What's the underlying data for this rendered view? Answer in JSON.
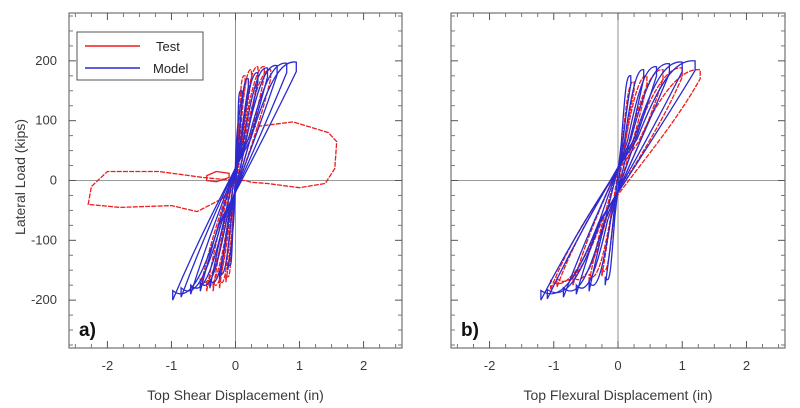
{
  "figure": {
    "ylabel": "Lateral Load (kips)"
  },
  "legend": {
    "items": [
      {
        "name": "Test",
        "color": "#ee1c1c"
      },
      {
        "name": "Model",
        "color": "#2a2ad0"
      }
    ]
  },
  "chart_data": [
    {
      "type": "line",
      "panel_label": "a)",
      "xlabel": "Top Shear Displacement (in)",
      "ylabel": "Lateral Load (kips)",
      "xlim": [
        -2.6,
        2.6
      ],
      "ylim": [
        -280,
        280
      ],
      "xticks": [
        -2,
        -1,
        0,
        1,
        2
      ],
      "yticks": [
        -200,
        -100,
        0,
        100,
        200
      ],
      "x_tick_labels": [
        "-2",
        "-1",
        "0",
        "1",
        "2"
      ],
      "y_tick_labels": [
        "-200",
        "-100",
        "0",
        "100",
        "200"
      ],
      "reference_lines": {
        "x": 0,
        "y": 0
      },
      "legend_position": "top-left",
      "series": [
        {
          "name": "Test",
          "color": "#ee1c1c",
          "loops": [
            {
              "pos": [
                0.15,
                175
              ],
              "neg": [
                -0.15,
                -170
              ]
            },
            {
              "pos": [
                0.25,
                185
              ],
              "neg": [
                -0.25,
                -180
              ]
            },
            {
              "pos": [
                0.35,
                190
              ],
              "neg": [
                -0.35,
                -185
              ]
            },
            {
              "pos": [
                0.45,
                190
              ],
              "neg": [
                -0.45,
                -185
              ]
            },
            {
              "pos": [
                0.55,
                185
              ],
              "neg": [
                -0.55,
                -180
              ]
            }
          ],
          "excursion": [
            [
              0.0,
              30
            ],
            [
              0.3,
              90
            ],
            [
              0.9,
              98
            ],
            [
              1.45,
              80
            ],
            [
              1.58,
              65
            ],
            [
              1.55,
              20
            ],
            [
              1.4,
              -5
            ],
            [
              1.0,
              -12
            ],
            [
              0.5,
              -5
            ],
            [
              0.25,
              -3
            ],
            [
              0.15,
              0
            ],
            [
              0.0,
              0
            ],
            [
              -0.5,
              5
            ],
            [
              -1.2,
              15
            ],
            [
              -2.0,
              15
            ],
            [
              -2.25,
              -10
            ],
            [
              -2.3,
              -40
            ],
            [
              -1.8,
              -45
            ],
            [
              -1.0,
              -42
            ],
            [
              -0.6,
              -52
            ],
            [
              -0.2,
              -30
            ],
            [
              0.0,
              0
            ]
          ],
          "small_loop": [
            [
              -0.3,
              15
            ],
            [
              -0.45,
              8
            ],
            [
              -0.45,
              0
            ],
            [
              -0.3,
              -2
            ],
            [
              -0.1,
              5
            ],
            [
              -0.1,
              12
            ],
            [
              -0.3,
              15
            ]
          ]
        },
        {
          "name": "Model",
          "color": "#2a2ad0",
          "loops": [
            {
              "pos": [
                0.1,
                150
              ],
              "neg": [
                -0.12,
                -150
              ]
            },
            {
              "pos": [
                0.2,
                170
              ],
              "neg": [
                -0.25,
                -165
              ]
            },
            {
              "pos": [
                0.35,
                180
              ],
              "neg": [
                -0.4,
                -180
              ]
            },
            {
              "pos": [
                0.5,
                188
              ],
              "neg": [
                -0.55,
                -185
              ]
            },
            {
              "pos": [
                0.65,
                192
              ],
              "neg": [
                -0.7,
                -190
              ]
            },
            {
              "pos": [
                0.8,
                196
              ],
              "neg": [
                -0.85,
                -195
              ]
            },
            {
              "pos": [
                0.95,
                198
              ],
              "neg": [
                -0.98,
                -200
              ]
            }
          ]
        }
      ]
    },
    {
      "type": "line",
      "panel_label": "b)",
      "xlabel": "Top Flexural Displacement (in)",
      "ylabel": "",
      "xlim": [
        -2.6,
        2.6
      ],
      "ylim": [
        -280,
        280
      ],
      "xticks": [
        -2,
        -1,
        0,
        1,
        2
      ],
      "yticks": [
        -200,
        -100,
        0,
        100,
        200
      ],
      "x_tick_labels": [
        "-2",
        "-1",
        "0",
        "1",
        "2"
      ],
      "y_tick_labels": [],
      "reference_lines": {
        "x": 0,
        "y": 0
      },
      "series": [
        {
          "name": "Test",
          "color": "#ee1c1c",
          "loops": [
            {
              "pos": [
                0.25,
                165
              ],
              "neg": [
                -0.25,
                -160
              ]
            },
            {
              "pos": [
                0.45,
                175
              ],
              "neg": [
                -0.45,
                -170
              ]
            },
            {
              "pos": [
                0.7,
                185
              ],
              "neg": [
                -0.7,
                -175
              ]
            },
            {
              "pos": [
                1.0,
                188
              ],
              "neg": [
                -0.95,
                -178
              ]
            },
            {
              "pos": [
                1.28,
                185
              ],
              "neg": [
                -1.05,
                -182
              ]
            }
          ]
        },
        {
          "name": "Model",
          "color": "#2a2ad0",
          "loops": [
            {
              "pos": [
                0.2,
                175
              ],
              "neg": [
                -0.2,
                -175
              ]
            },
            {
              "pos": [
                0.4,
                185
              ],
              "neg": [
                -0.45,
                -185
              ]
            },
            {
              "pos": [
                0.6,
                190
              ],
              "neg": [
                -0.65,
                -190
              ]
            },
            {
              "pos": [
                0.8,
                195
              ],
              "neg": [
                -0.85,
                -195
              ]
            },
            {
              "pos": [
                1.0,
                198
              ],
              "neg": [
                -1.1,
                -198
              ]
            },
            {
              "pos": [
                1.2,
                200
              ],
              "neg": [
                -1.2,
                -200
              ]
            }
          ]
        }
      ]
    }
  ]
}
